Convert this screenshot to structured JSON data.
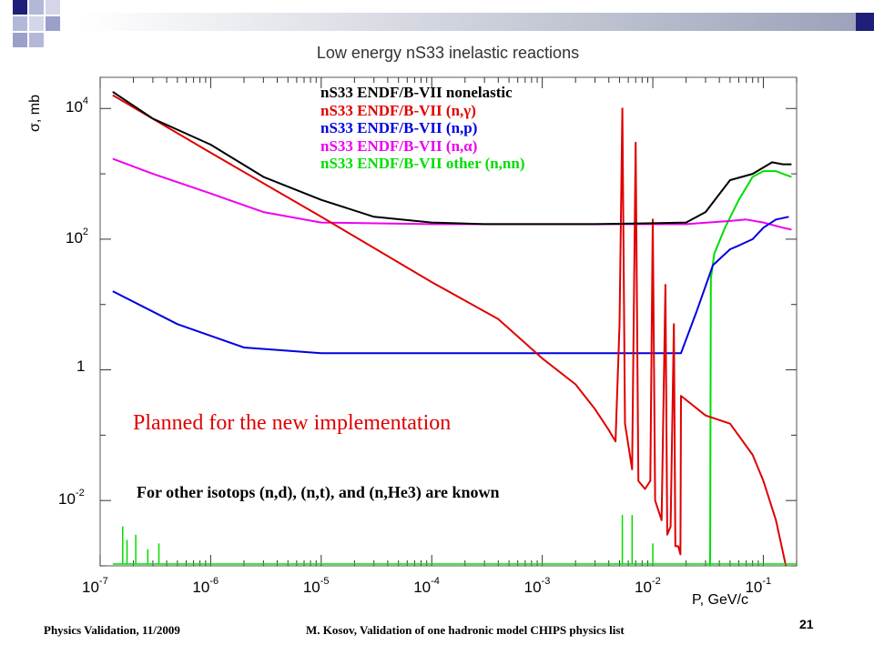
{
  "slide": {
    "footer_left": "Physics Validation, 11/2009",
    "footer_center": "M. Kosov,  Validation of one hadronic model CHIPS physics list",
    "page_number": "21",
    "annotation_red": "Planned for the new implementation",
    "annotation_black": "For other isotops (n,d), (n,t), and (n,He3) are known"
  },
  "colors": {
    "nonelastic": "#000000",
    "ng": "#e00000",
    "np": "#0000e0",
    "na": "#ee00ee",
    "other": "#00dd00"
  },
  "chart_data": {
    "type": "line",
    "title": "Low energy nS33 inelastic reactions",
    "ylabel": "σ, mb",
    "xlabel": "P, GeV/c",
    "xscale": "log",
    "yscale": "log",
    "xlim": [
      1e-07,
      0.2
    ],
    "ylim": [
      0.001,
      30000
    ],
    "x_ticks": [
      {
        "base": "10",
        "exp": "-7"
      },
      {
        "base": "10",
        "exp": "-6"
      },
      {
        "base": "10",
        "exp": "-5"
      },
      {
        "base": "10",
        "exp": "-4"
      },
      {
        "base": "10",
        "exp": "-3"
      },
      {
        "base": "10",
        "exp": "-2"
      },
      {
        "base": "10",
        "exp": "-1"
      }
    ],
    "y_ticks": [
      {
        "base": "10",
        "exp": "4"
      },
      {
        "base": "10",
        "exp": "2"
      },
      {
        "base": "1",
        "exp": ""
      },
      {
        "base": "10",
        "exp": "-2"
      }
    ],
    "legend_position": "top-center",
    "series": [
      {
        "key": "nonelastic",
        "name": "nS33 ENDF/B-VII nonelastic",
        "points": [
          [
            1.3e-07,
            18000
          ],
          [
            3e-07,
            7000
          ],
          [
            1e-06,
            2800
          ],
          [
            3e-06,
            900
          ],
          [
            1e-05,
            400
          ],
          [
            3e-05,
            220
          ],
          [
            0.0001,
            180
          ],
          [
            0.0003,
            170
          ],
          [
            0.001,
            170
          ],
          [
            0.003,
            170
          ],
          [
            0.01,
            175
          ],
          [
            0.02,
            180
          ],
          [
            0.03,
            260
          ],
          [
            0.05,
            800
          ],
          [
            0.08,
            1000
          ],
          [
            0.12,
            1500
          ],
          [
            0.15,
            1400
          ],
          [
            0.18,
            1400
          ]
        ]
      },
      {
        "key": "ng",
        "name": "nS33 ENDF/B-VII (n,γ)",
        "points": [
          [
            1.3e-07,
            16000
          ],
          [
            1e-06,
            2100
          ],
          [
            1e-05,
            220
          ],
          [
            0.0001,
            22
          ],
          [
            0.0004,
            6
          ],
          [
            0.001,
            1.5
          ],
          [
            0.002,
            0.6
          ],
          [
            0.003,
            0.25
          ],
          [
            0.004,
            0.12
          ],
          [
            0.0046,
            0.08
          ],
          [
            0.005,
            5
          ],
          [
            0.0053,
            10000
          ],
          [
            0.0056,
            0.15
          ],
          [
            0.0065,
            0.03
          ],
          [
            0.007,
            3000
          ],
          [
            0.0074,
            0.02
          ],
          [
            0.0085,
            0.015
          ],
          [
            0.0095,
            0.02
          ],
          [
            0.01,
            200
          ],
          [
            0.0105,
            0.01
          ],
          [
            0.012,
            0.005
          ],
          [
            0.013,
            20
          ],
          [
            0.0135,
            0.003
          ],
          [
            0.0145,
            0.004
          ],
          [
            0.0155,
            5
          ],
          [
            0.016,
            0.002
          ],
          [
            0.017,
            0.002
          ],
          [
            0.0178,
            0.0015
          ],
          [
            0.018,
            0.4
          ],
          [
            0.03,
            0.2
          ],
          [
            0.05,
            0.15
          ],
          [
            0.08,
            0.05
          ],
          [
            0.1,
            0.02
          ],
          [
            0.13,
            0.005
          ],
          [
            0.16,
            0.001
          ]
        ]
      },
      {
        "key": "np",
        "name": "nS33 ENDF/B-VII (n,p)",
        "points": [
          [
            1.3e-07,
            16
          ],
          [
            5e-07,
            5
          ],
          [
            2e-06,
            2.2
          ],
          [
            1e-05,
            1.8
          ],
          [
            0.0001,
            1.8
          ],
          [
            0.001,
            1.8
          ],
          [
            0.01,
            1.8
          ],
          [
            0.018,
            1.8
          ],
          [
            0.025,
            8
          ],
          [
            0.035,
            40
          ],
          [
            0.05,
            70
          ],
          [
            0.06,
            80
          ],
          [
            0.08,
            100
          ],
          [
            0.1,
            150
          ],
          [
            0.13,
            200
          ],
          [
            0.17,
            220
          ]
        ]
      },
      {
        "key": "na",
        "name": "nS33 ENDF/B-VII (n,α)",
        "points": [
          [
            1.3e-07,
            1700
          ],
          [
            3e-07,
            1000
          ],
          [
            1e-06,
            500
          ],
          [
            3e-06,
            260
          ],
          [
            1e-05,
            180
          ],
          [
            0.0001,
            170
          ],
          [
            0.001,
            170
          ],
          [
            0.01,
            170
          ],
          [
            0.02,
            170
          ],
          [
            0.05,
            190
          ],
          [
            0.07,
            200
          ],
          [
            0.1,
            180
          ],
          [
            0.15,
            150
          ],
          [
            0.18,
            140
          ]
        ]
      },
      {
        "key": "other",
        "name": "nS33 ENDF/B-VII other (n,nn)",
        "points": [
          [
            0.033,
            0.001
          ],
          [
            0.0335,
            25
          ],
          [
            0.036,
            60
          ],
          [
            0.045,
            150
          ],
          [
            0.06,
            400
          ],
          [
            0.08,
            900
          ],
          [
            0.1,
            1100
          ],
          [
            0.13,
            1100
          ],
          [
            0.15,
            1000
          ],
          [
            0.18,
            900
          ]
        ]
      }
    ]
  }
}
